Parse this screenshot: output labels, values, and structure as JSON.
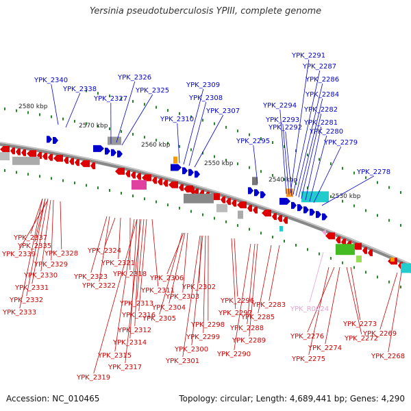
{
  "title": "Yersinia pseudotuberculosis YPIII, complete genome",
  "footer": {
    "accession": "Accession: NC_010465",
    "summary": "Topology: circular; Length: 4,689,441 bp; Genes: 4,290"
  },
  "scale_labels": [
    "2580 kbp",
    "2570 kbp",
    "2560 kbp",
    "2550 kbp",
    "2540 kbp",
    "2530 kbp"
  ],
  "forward_labels": [
    "YPK_2340",
    "YPK_2338",
    "YPK_2327",
    "YPK_2326",
    "YPK_2325",
    "YPK_2310",
    "YPK_2309",
    "YPK_2308",
    "YPK_2307",
    "YPK_2295",
    "YPK_2294",
    "YPK_2293",
    "YPK_2292",
    "YPK_2291",
    "YPK_2287",
    "YPK_2286",
    "YPK_2284",
    "YPK_2282",
    "YPK_2281",
    "YPK_2280",
    "YPK_2279",
    "YPK_2278"
  ],
  "reverse_labels": [
    "YPK_2337",
    "YPK_2335",
    "YPK_2339",
    "YPK_2328",
    "YPK_2329",
    "YPK_2330",
    "YPK_2331",
    "YPK_2332",
    "YPK_2333",
    "YPK_2324",
    "YPK_2321",
    "YPK_2323",
    "YPK_2322",
    "YPK_2318",
    "YPK_2311",
    "YPK_2313",
    "YPK_2316",
    "YPK_2312",
    "YPK_2314",
    "YPK_2315",
    "YPK_2317",
    "YPK_2319",
    "YPK_2306",
    "YPK_2303",
    "YPK_2304",
    "YPK_2305",
    "YPK_2302",
    "YPK_2298",
    "YPK_2299",
    "YPK_2300",
    "YPK_2301",
    "YPK_2296",
    "YPK_2297",
    "YPK_2288",
    "YPK_2289",
    "YPK_2290",
    "YPK_2283",
    "YPK_2285",
    "YPK_2273",
    "YPK_2272",
    "YPK_2276",
    "YPK_2274",
    "YPK_2275",
    "YPK_2269",
    "YPK_2268"
  ],
  "rna_labels": [
    "YPK_R0024"
  ],
  "colors": {
    "forward": "#0000cc",
    "reverse": "#dd0000",
    "rna": "#f0a0d8",
    "backbone": "#888888",
    "tick": "#228822",
    "label_forward": "#0000cc",
    "label_reverse": "#cc0000",
    "label_rna": "#e8a0d0"
  }
}
